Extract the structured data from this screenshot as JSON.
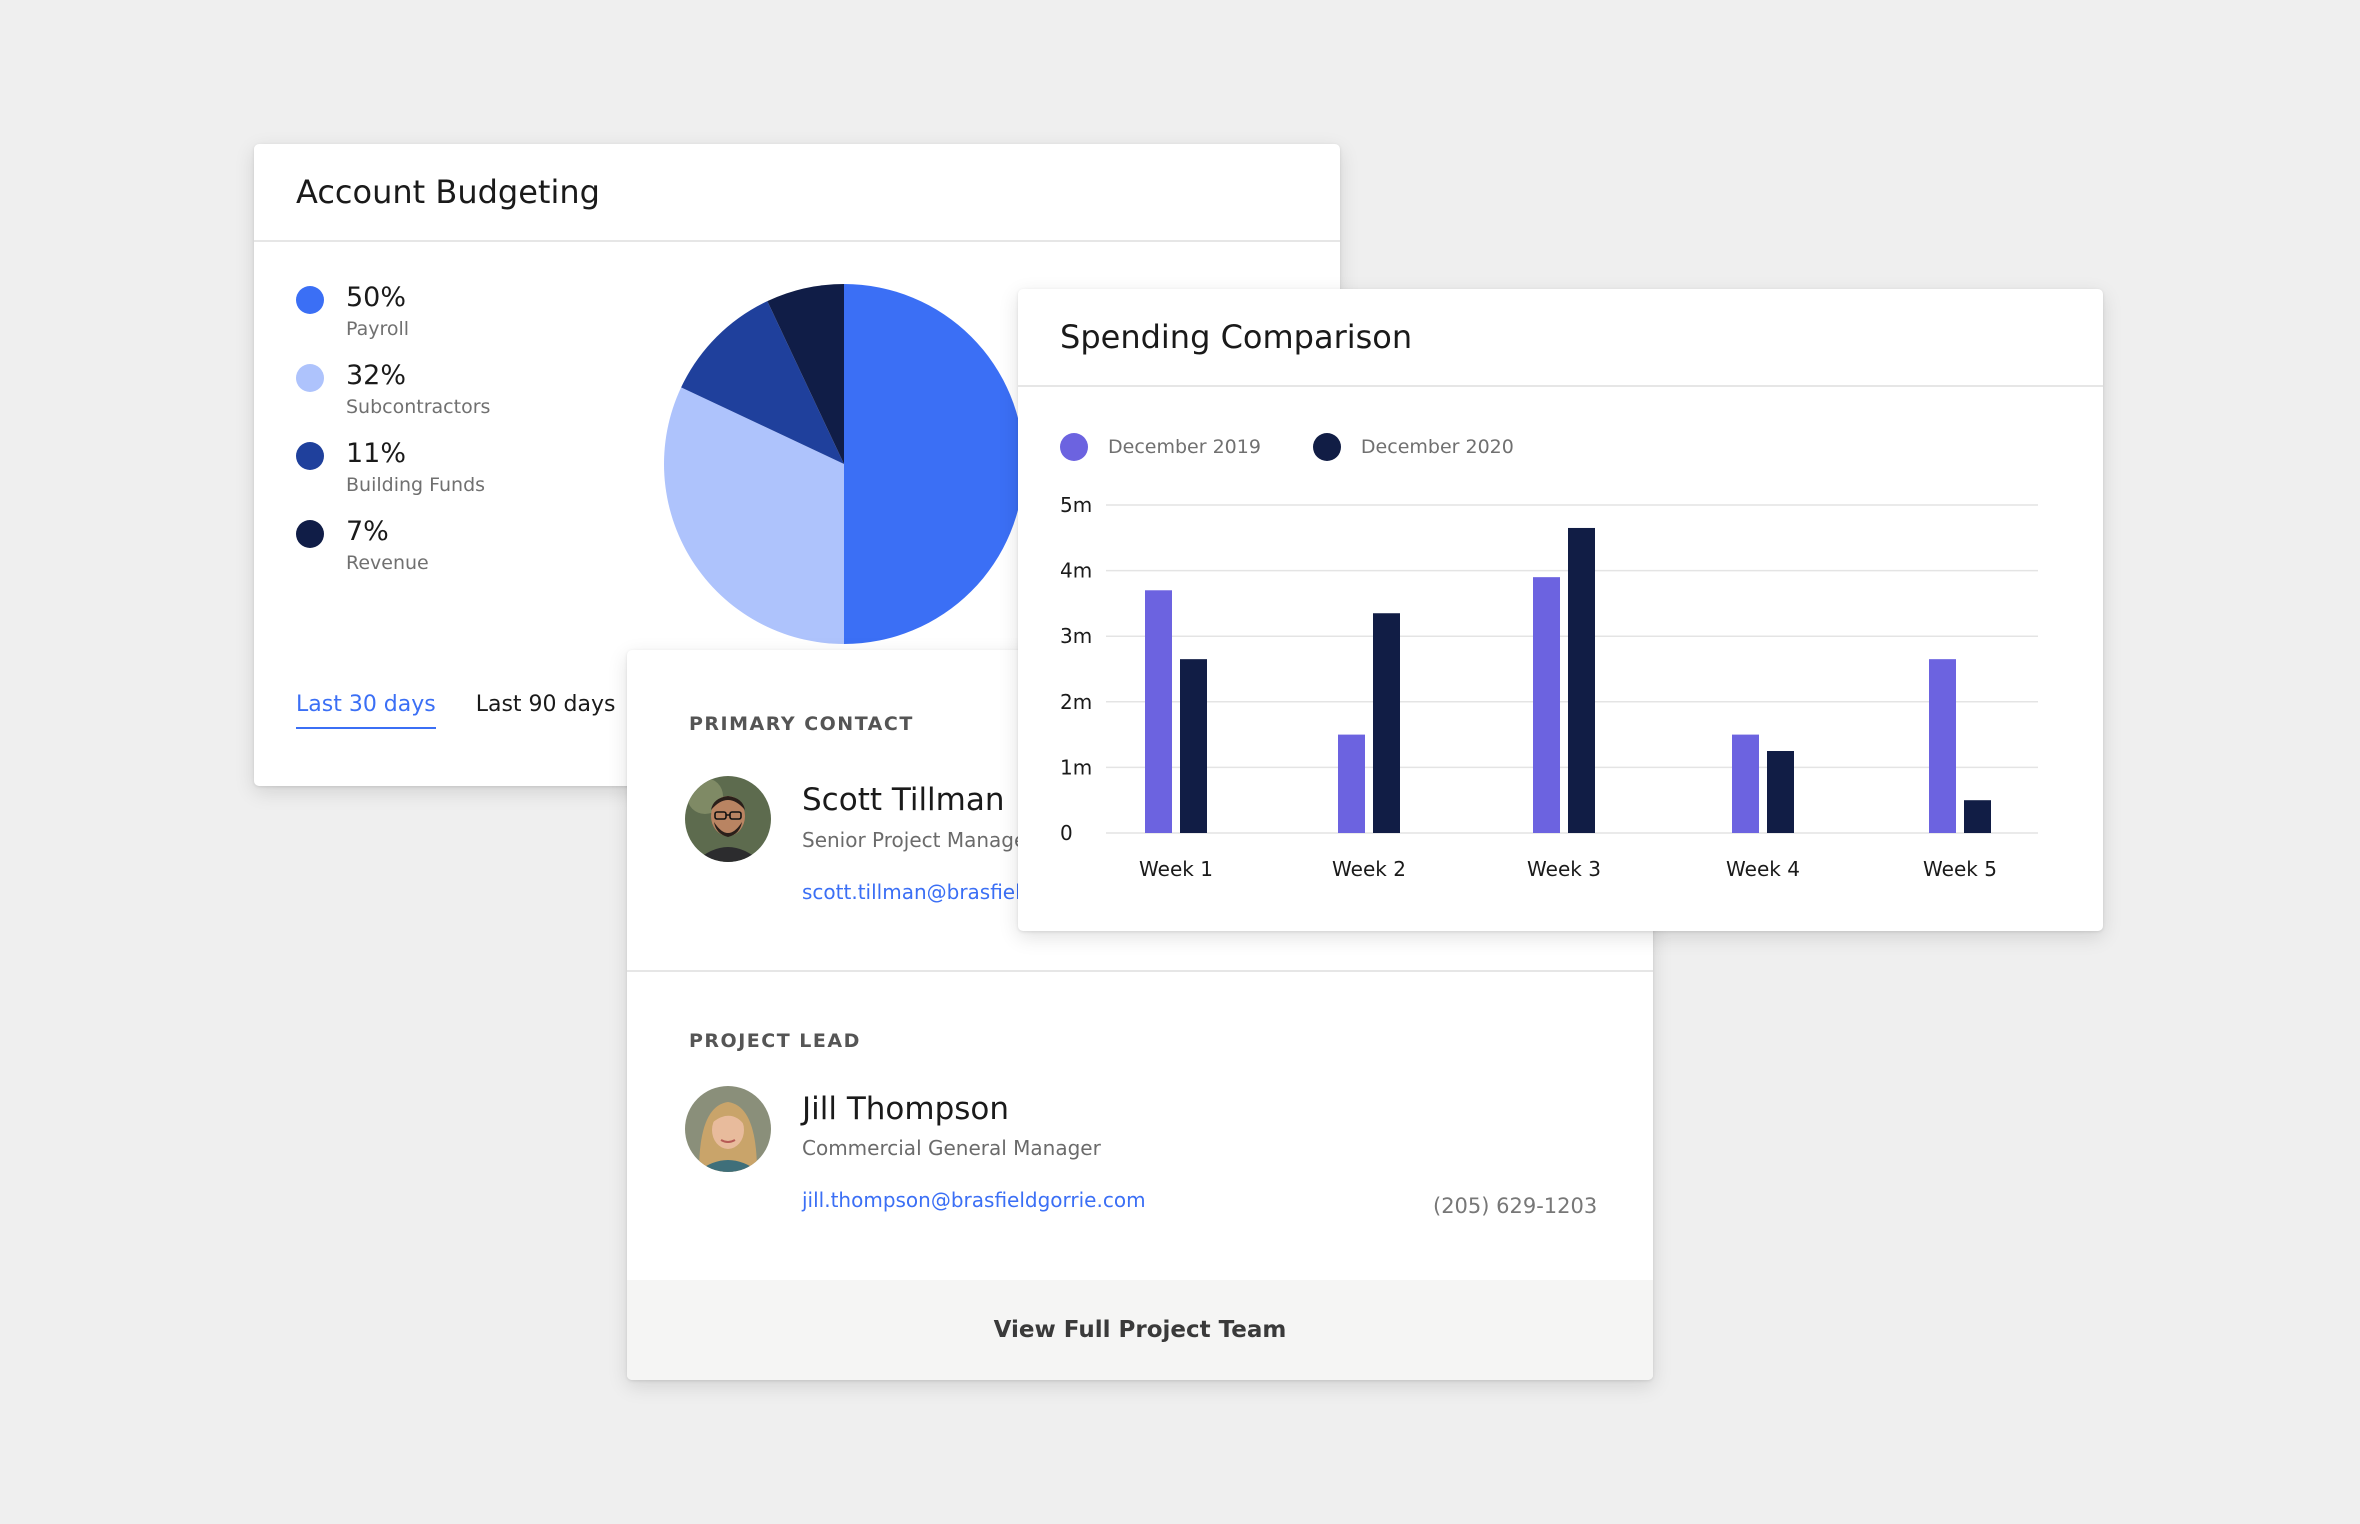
{
  "budget": {
    "title": "Account Budgeting",
    "legend": [
      {
        "value": "50%",
        "label": "Payroll",
        "color": "#3b6ff5"
      },
      {
        "value": "32%",
        "label": "Subcontractors",
        "color": "#aec3fc"
      },
      {
        "value": "11%",
        "label": "Building Funds",
        "color": "#1f409c"
      },
      {
        "value": "7%",
        "label": "Revenue",
        "color": "#101d47"
      }
    ],
    "ranges": {
      "active": "Last 30 days",
      "inactive": "Last 90 days"
    },
    "accent_color": "#3b6ff5"
  },
  "contacts": {
    "primary": {
      "section_label": "PRIMARY CONTACT",
      "name": "Scott Tillman",
      "title": "Senior Project Manage",
      "email": "scott.tillman@brasfiel"
    },
    "lead": {
      "section_label": "PROJECT LEAD",
      "name": "Jill Thompson",
      "title": "Commercial General Manager",
      "email": "jill.thompson@brasfieldgorrie.com",
      "phone": "(205) 629-1203"
    },
    "footer_button": "View Full Project Team"
  },
  "spending": {
    "title": "Spending Comparison"
  },
  "chart_data": [
    {
      "type": "pie",
      "categories": [
        "Payroll",
        "Subcontractors",
        "Building Funds",
        "Revenue"
      ],
      "values": [
        50,
        32,
        11,
        7
      ],
      "colors": [
        "#3b6ff5",
        "#aec3fc",
        "#1f409c",
        "#101d47"
      ]
    },
    {
      "type": "bar",
      "categories": [
        "Week 1",
        "Week 2",
        "Week 3",
        "Week 4",
        "Week 5"
      ],
      "series": [
        {
          "name": "December 2019",
          "color": "#6c63e0",
          "values": [
            3.7,
            1.5,
            3.9,
            1.5,
            2.65
          ]
        },
        {
          "name": "December 2020",
          "color": "#111d45",
          "values": [
            2.65,
            3.35,
            4.65,
            1.25,
            0.5
          ]
        }
      ],
      "yticks": [
        "0",
        "1m",
        "2m",
        "3m",
        "4m",
        "5m"
      ],
      "ylim": [
        0,
        5
      ],
      "grid": true,
      "legend": "top-left"
    }
  ]
}
